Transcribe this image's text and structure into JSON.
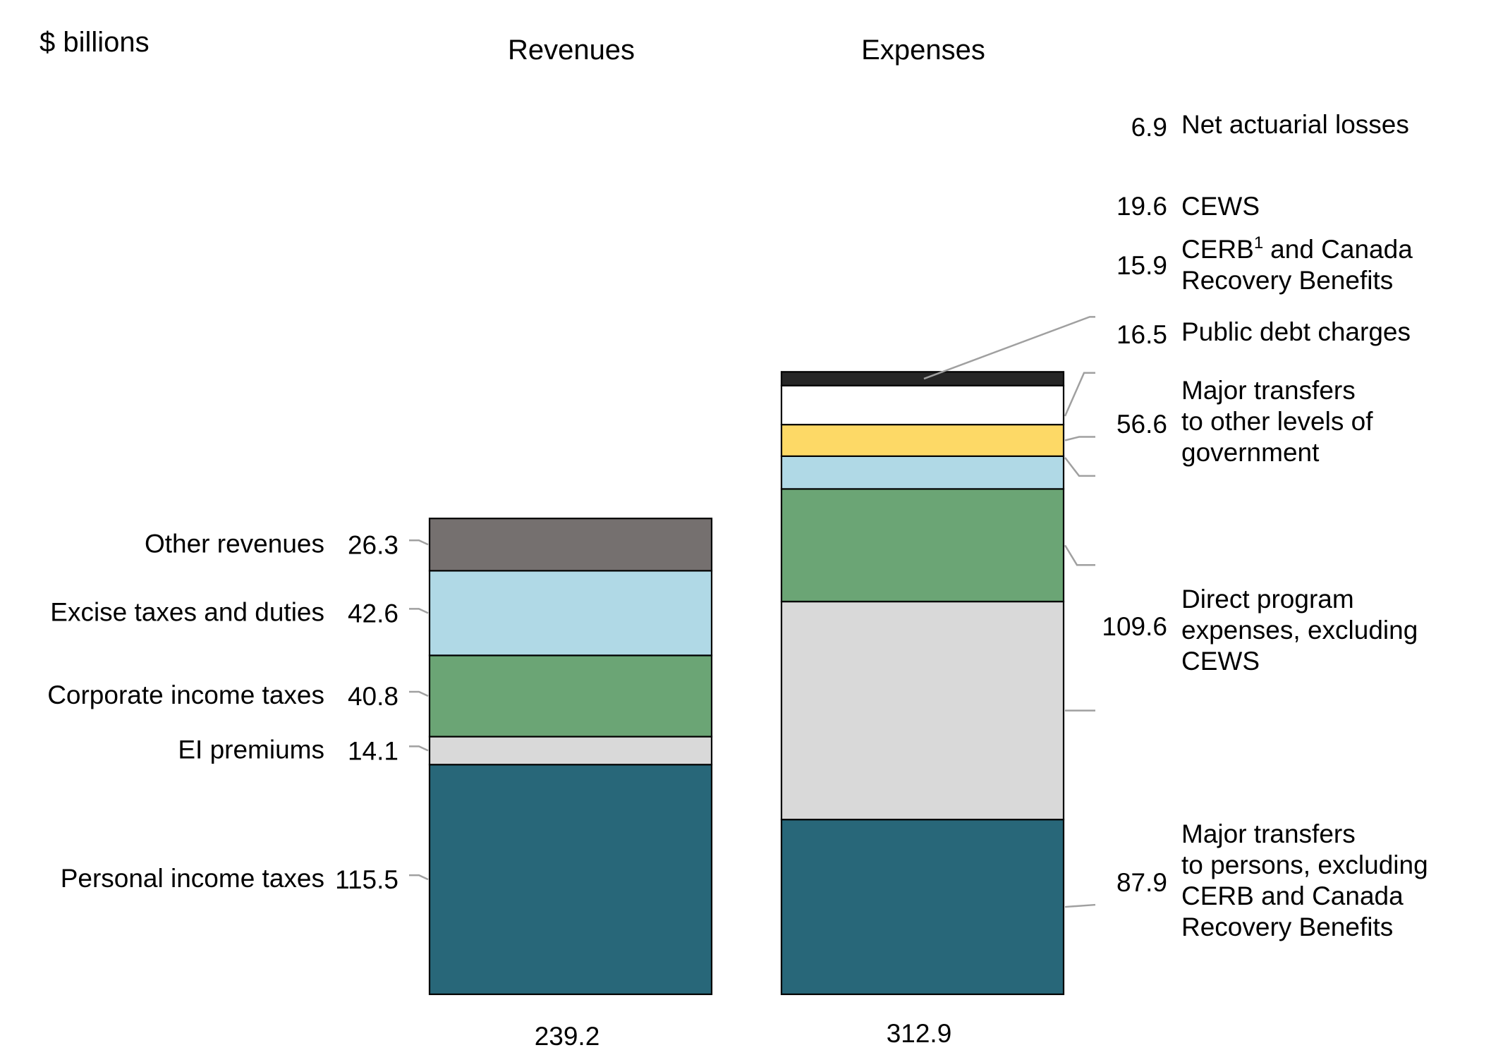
{
  "chart_data": {
    "type": "bar",
    "stacked": true,
    "units_label": "$ billions",
    "categories": [
      "Revenues",
      "Expenses"
    ],
    "totals": [
      "239.2",
      "312.9"
    ],
    "stacks": [
      {
        "name": "Revenues",
        "total": 239.2,
        "segments": [
          {
            "label": "Personal income taxes",
            "value": 115.5,
            "value_text": "115.5",
            "color": "#286779"
          },
          {
            "label": "EI premiums",
            "value": 14.1,
            "value_text": "14.1",
            "color": "#d9d9d9"
          },
          {
            "label": "Corporate income taxes",
            "value": 40.8,
            "value_text": "40.8",
            "color": "#6ba575"
          },
          {
            "label": "Excise taxes and duties",
            "value": 42.6,
            "value_text": "42.6",
            "color": "#b0d9e6"
          },
          {
            "label": "Other revenues",
            "value": 26.3,
            "value_text": "26.3",
            "color": "#75706f"
          }
        ]
      },
      {
        "name": "Expenses",
        "total": 312.9,
        "segments": [
          {
            "label_lines": [
              "Major transfers",
              "to persons, excluding",
              "CERB and Canada",
              "Recovery Benefits"
            ],
            "value": 87.9,
            "value_text": "87.9",
            "color": "#286779"
          },
          {
            "label_lines": [
              "Direct program",
              "expenses, excluding",
              "CEWS"
            ],
            "value": 109.6,
            "value_text": "109.6",
            "color": "#d9d9d9"
          },
          {
            "label_lines": [
              "Major transfers",
              "to other levels of",
              "government"
            ],
            "value": 56.6,
            "value_text": "56.6",
            "color": "#6ba575"
          },
          {
            "label_lines": [
              "Public debt charges"
            ],
            "value": 16.5,
            "value_text": "16.5",
            "color": "#b0d9e6"
          },
          {
            "label_lines": [
              "CERB",
              "and Canada",
              "Recovery Benefits"
            ],
            "label_sup": "1",
            "value": 15.9,
            "value_text": "15.9",
            "color": "#fdd966"
          },
          {
            "label_lines": [
              "CEWS"
            ],
            "value": 19.6,
            "value_text": "19.6",
            "color": "#ffffff"
          },
          {
            "label_lines": [
              "Net actuarial losses"
            ],
            "value": 6.9,
            "value_text": "6.9",
            "color": "#262626"
          }
        ]
      }
    ]
  }
}
